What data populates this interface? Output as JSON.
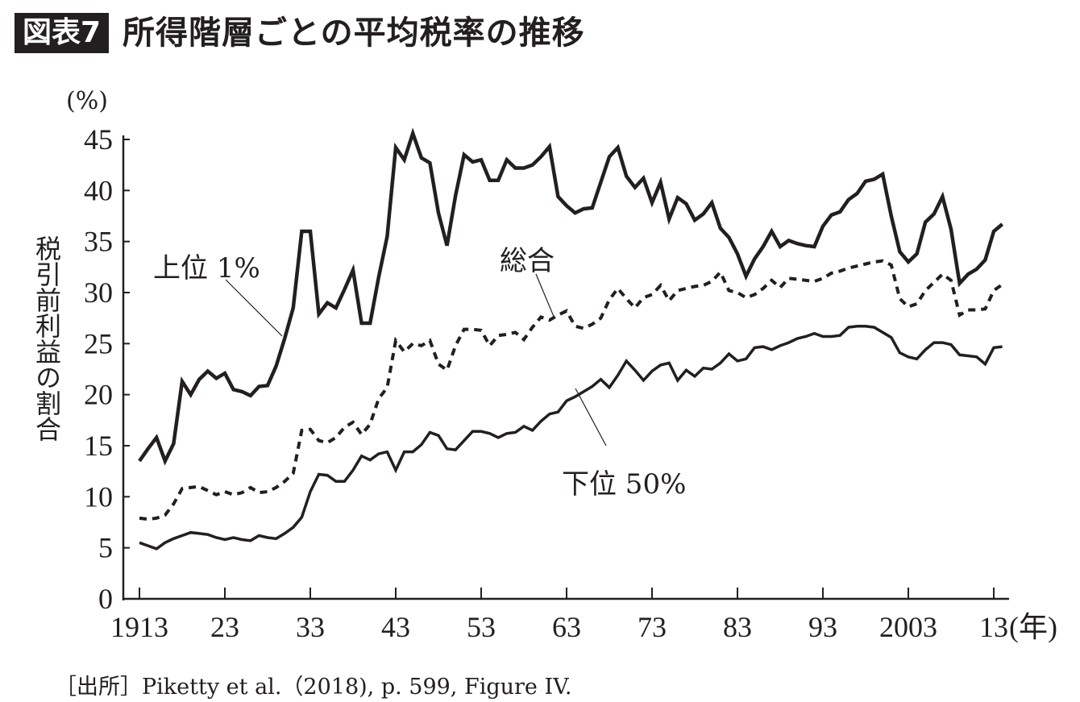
{
  "figure": {
    "badge": "図表7",
    "title": "所得階層ごとの平均税率の推移",
    "source": "［出所］Piketty et al.（2018), p. 599, Figure IV."
  },
  "chart_data": {
    "type": "line",
    "title": "所得階層ごとの平均税率の推移",
    "ylabel": "税引前利益の割合",
    "yunit": "(%)",
    "xunit": "(年)",
    "ylim": [
      0,
      45
    ],
    "xlim": [
      1913,
      2014
    ],
    "yticks": [
      0,
      5,
      10,
      15,
      20,
      25,
      30,
      35,
      40,
      45
    ],
    "xticks": [
      {
        "value": 1913,
        "label": "1913"
      },
      {
        "value": 1923,
        "label": "23"
      },
      {
        "value": 1933,
        "label": "33"
      },
      {
        "value": 1943,
        "label": "43"
      },
      {
        "value": 1953,
        "label": "53"
      },
      {
        "value": 1963,
        "label": "63"
      },
      {
        "value": 1973,
        "label": "73"
      },
      {
        "value": 1983,
        "label": "83"
      },
      {
        "value": 1993,
        "label": "93"
      },
      {
        "value": 2003,
        "label": "2003"
      },
      {
        "value": 2013,
        "label": "13"
      }
    ],
    "grid": false,
    "series": [
      {
        "name": "上位 1%",
        "style": "solid-thick",
        "color": "#231f20",
        "points": [
          [
            1913,
            13.5
          ],
          [
            1914,
            14.7
          ],
          [
            1915,
            15.8
          ],
          [
            1916,
            13.5
          ],
          [
            1917,
            15.2
          ],
          [
            1918,
            21.3
          ],
          [
            1919,
            20
          ],
          [
            1920,
            21.5
          ],
          [
            1921,
            22.3
          ],
          [
            1922,
            21.6
          ],
          [
            1923,
            22.1
          ],
          [
            1924,
            20.5
          ],
          [
            1925,
            20.3
          ],
          [
            1926,
            19.9
          ],
          [
            1927,
            20.8
          ],
          [
            1928,
            20.9
          ],
          [
            1929,
            22.8
          ],
          [
            1930,
            25.5
          ],
          [
            1931,
            28.5
          ],
          [
            1932,
            36
          ],
          [
            1933,
            36
          ],
          [
            1934,
            27.9
          ],
          [
            1935,
            29
          ],
          [
            1936,
            28.5
          ],
          [
            1937,
            30.3
          ],
          [
            1938,
            32.2
          ],
          [
            1939,
            27
          ],
          [
            1940,
            27
          ],
          [
            1941,
            31.5
          ],
          [
            1942,
            35.5
          ],
          [
            1943,
            44.2
          ],
          [
            1944,
            43
          ],
          [
            1945,
            45.6
          ],
          [
            1946,
            43.2
          ],
          [
            1947,
            42.7
          ],
          [
            1948,
            37.8
          ],
          [
            1949,
            34.6
          ],
          [
            1950,
            39.5
          ],
          [
            1951,
            43.5
          ],
          [
            1952,
            42.8
          ],
          [
            1953,
            43
          ],
          [
            1954,
            41
          ],
          [
            1955,
            41
          ],
          [
            1956,
            43
          ],
          [
            1957,
            42.2
          ],
          [
            1958,
            42.2
          ],
          [
            1959,
            42.5
          ],
          [
            1960,
            43.3
          ],
          [
            1961,
            44.3
          ],
          [
            1962,
            39.4
          ],
          [
            1963,
            38.5
          ],
          [
            1964,
            37.8
          ],
          [
            1965,
            38.2
          ],
          [
            1966,
            38.3
          ],
          [
            1967,
            40.8
          ],
          [
            1968,
            43.3
          ],
          [
            1969,
            44.2
          ],
          [
            1970,
            41.4
          ],
          [
            1971,
            40.3
          ],
          [
            1972,
            41.2
          ],
          [
            1973,
            38.8
          ],
          [
            1974,
            40.8
          ],
          [
            1975,
            37.2
          ],
          [
            1976,
            39.3
          ],
          [
            1977,
            38.7
          ],
          [
            1978,
            37.1
          ],
          [
            1979,
            37.7
          ],
          [
            1980,
            38.8
          ],
          [
            1981,
            36.3
          ],
          [
            1982,
            35.4
          ],
          [
            1983,
            33.8
          ],
          [
            1984,
            31.6
          ],
          [
            1985,
            33.3
          ],
          [
            1986,
            34.5
          ],
          [
            1987,
            36
          ],
          [
            1988,
            34.5
          ],
          [
            1989,
            35.1
          ],
          [
            1990,
            34.8
          ],
          [
            1991,
            34.6
          ],
          [
            1992,
            34.5
          ],
          [
            1993,
            36.5
          ],
          [
            1994,
            37.6
          ],
          [
            1995,
            37.9
          ],
          [
            1996,
            39.1
          ],
          [
            1997,
            39.7
          ],
          [
            1998,
            40.9
          ],
          [
            1999,
            41.1
          ],
          [
            2000,
            41.6
          ],
          [
            2001,
            37.5
          ],
          [
            2002,
            34
          ],
          [
            2003,
            33
          ],
          [
            2004,
            33.8
          ],
          [
            2005,
            36.9
          ],
          [
            2006,
            37.7
          ],
          [
            2007,
            39.4
          ],
          [
            2008,
            36.2
          ],
          [
            2009,
            30.9
          ],
          [
            2010,
            31.8
          ],
          [
            2011,
            32.3
          ],
          [
            2012,
            33.2
          ],
          [
            2013,
            36
          ],
          [
            2014,
            36.7
          ]
        ]
      },
      {
        "name": "総合",
        "style": "dashed",
        "color": "#231f20",
        "points": [
          [
            1913,
            7.9
          ],
          [
            1914,
            7.8
          ],
          [
            1915,
            7.9
          ],
          [
            1916,
            8.2
          ],
          [
            1917,
            9.3
          ],
          [
            1918,
            10.8
          ],
          [
            1919,
            10.9
          ],
          [
            1920,
            11
          ],
          [
            1921,
            10.6
          ],
          [
            1922,
            10.2
          ],
          [
            1923,
            10.5
          ],
          [
            1924,
            10.2
          ],
          [
            1925,
            10.4
          ],
          [
            1926,
            10.9
          ],
          [
            1927,
            10.4
          ],
          [
            1928,
            10.5
          ],
          [
            1929,
            10.9
          ],
          [
            1930,
            11.5
          ],
          [
            1931,
            12.3
          ],
          [
            1932,
            16.5
          ],
          [
            1933,
            16.6
          ],
          [
            1934,
            15.5
          ],
          [
            1935,
            15.3
          ],
          [
            1936,
            15.8
          ],
          [
            1937,
            16.8
          ],
          [
            1938,
            17.3
          ],
          [
            1939,
            16.1
          ],
          [
            1940,
            17.1
          ],
          [
            1941,
            19.6
          ],
          [
            1942,
            20.7
          ],
          [
            1943,
            25.3
          ],
          [
            1944,
            24.2
          ],
          [
            1945,
            25
          ],
          [
            1946,
            24.8
          ],
          [
            1947,
            25.3
          ],
          [
            1948,
            23
          ],
          [
            1949,
            22.4
          ],
          [
            1950,
            24.8
          ],
          [
            1951,
            26.4
          ],
          [
            1952,
            26.4
          ],
          [
            1953,
            26.3
          ],
          [
            1954,
            24.8
          ],
          [
            1955,
            25.8
          ],
          [
            1956,
            25.9
          ],
          [
            1957,
            26.1
          ],
          [
            1958,
            25.4
          ],
          [
            1959,
            26.6
          ],
          [
            1960,
            27.6
          ],
          [
            1961,
            27.3
          ],
          [
            1962,
            27.8
          ],
          [
            1963,
            28.2
          ],
          [
            1964,
            26.7
          ],
          [
            1965,
            26.5
          ],
          [
            1966,
            26.9
          ],
          [
            1967,
            27.5
          ],
          [
            1968,
            29.3
          ],
          [
            1969,
            30.4
          ],
          [
            1970,
            29.4
          ],
          [
            1971,
            28.5
          ],
          [
            1972,
            29.5
          ],
          [
            1973,
            29.8
          ],
          [
            1974,
            30.7
          ],
          [
            1975,
            29.2
          ],
          [
            1976,
            30.2
          ],
          [
            1977,
            30.4
          ],
          [
            1978,
            30.6
          ],
          [
            1979,
            30.7
          ],
          [
            1980,
            31.1
          ],
          [
            1981,
            32
          ],
          [
            1982,
            30.2
          ],
          [
            1983,
            30
          ],
          [
            1984,
            29.5
          ],
          [
            1985,
            29.8
          ],
          [
            1986,
            30.4
          ],
          [
            1987,
            31.2
          ],
          [
            1988,
            30.5
          ],
          [
            1989,
            31.4
          ],
          [
            1990,
            31.3
          ],
          [
            1991,
            31.2
          ],
          [
            1992,
            31.1
          ],
          [
            1993,
            31.4
          ],
          [
            1994,
            31.9
          ],
          [
            1995,
            32.1
          ],
          [
            1996,
            32.4
          ],
          [
            1997,
            32.6
          ],
          [
            1998,
            32.8
          ],
          [
            1999,
            33
          ],
          [
            2000,
            33.1
          ],
          [
            2001,
            32.7
          ],
          [
            2002,
            29.4
          ],
          [
            2003,
            28.6
          ],
          [
            2004,
            28.9
          ],
          [
            2005,
            30.2
          ],
          [
            2006,
            31
          ],
          [
            2007,
            31.8
          ],
          [
            2008,
            31.2
          ],
          [
            2009,
            27.8
          ],
          [
            2010,
            28.3
          ],
          [
            2011,
            28.3
          ],
          [
            2012,
            28.4
          ],
          [
            2013,
            30.2
          ],
          [
            2014,
            30.8
          ]
        ]
      },
      {
        "name": "下位 50%",
        "style": "solid",
        "color": "#231f20",
        "points": [
          [
            1913,
            5.5
          ],
          [
            1914,
            5.2
          ],
          [
            1915,
            4.9
          ],
          [
            1916,
            5.5
          ],
          [
            1917,
            5.9
          ],
          [
            1918,
            6.2
          ],
          [
            1919,
            6.5
          ],
          [
            1920,
            6.4
          ],
          [
            1921,
            6.3
          ],
          [
            1922,
            6.0
          ],
          [
            1923,
            5.8
          ],
          [
            1924,
            6.0
          ],
          [
            1925,
            5.8
          ],
          [
            1926,
            5.7
          ],
          [
            1927,
            6.2
          ],
          [
            1928,
            6.0
          ],
          [
            1929,
            5.9
          ],
          [
            1930,
            6.4
          ],
          [
            1931,
            7.0
          ],
          [
            1932,
            8.0
          ],
          [
            1933,
            10.5
          ],
          [
            1934,
            12.2
          ],
          [
            1935,
            12.1
          ],
          [
            1936,
            11.5
          ],
          [
            1937,
            11.5
          ],
          [
            1938,
            12.6
          ],
          [
            1939,
            14.0
          ],
          [
            1940,
            13.6
          ],
          [
            1941,
            14.2
          ],
          [
            1942,
            14.4
          ],
          [
            1943,
            12.6
          ],
          [
            1944,
            14.4
          ],
          [
            1945,
            14.4
          ],
          [
            1946,
            15.1
          ],
          [
            1947,
            16.3
          ],
          [
            1948,
            16.0
          ],
          [
            1949,
            14.7
          ],
          [
            1950,
            14.6
          ],
          [
            1951,
            15.5
          ],
          [
            1952,
            16.4
          ],
          [
            1953,
            16.4
          ],
          [
            1954,
            16.2
          ],
          [
            1955,
            15.8
          ],
          [
            1956,
            16.2
          ],
          [
            1957,
            16.3
          ],
          [
            1958,
            16.9
          ],
          [
            1959,
            16.5
          ],
          [
            1960,
            17.4
          ],
          [
            1961,
            18.1
          ],
          [
            1962,
            18.3
          ],
          [
            1963,
            19.4
          ],
          [
            1964,
            19.8
          ],
          [
            1965,
            20.3
          ],
          [
            1966,
            20.8
          ],
          [
            1967,
            21.5
          ],
          [
            1968,
            20.7
          ],
          [
            1969,
            21.9
          ],
          [
            1970,
            23.3
          ],
          [
            1971,
            22.4
          ],
          [
            1972,
            21.4
          ],
          [
            1973,
            22.3
          ],
          [
            1974,
            22.9
          ],
          [
            1975,
            23.1
          ],
          [
            1976,
            21.4
          ],
          [
            1977,
            22.4
          ],
          [
            1978,
            21.8
          ],
          [
            1979,
            22.6
          ],
          [
            1980,
            22.5
          ],
          [
            1981,
            23.1
          ],
          [
            1982,
            24.0
          ],
          [
            1983,
            23.3
          ],
          [
            1984,
            23.5
          ],
          [
            1985,
            24.6
          ],
          [
            1986,
            24.7
          ],
          [
            1987,
            24.4
          ],
          [
            1988,
            24.8
          ],
          [
            1989,
            25.1
          ],
          [
            1990,
            25.5
          ],
          [
            1991,
            25.7
          ],
          [
            1992,
            26.0
          ],
          [
            1993,
            25.7
          ],
          [
            1994,
            25.7
          ],
          [
            1995,
            25.8
          ],
          [
            1996,
            26.6
          ],
          [
            1997,
            26.7
          ],
          [
            1998,
            26.7
          ],
          [
            1999,
            26.6
          ],
          [
            2000,
            26.1
          ],
          [
            2001,
            25.6
          ],
          [
            2002,
            24.1
          ],
          [
            2003,
            23.7
          ],
          [
            2004,
            23.5
          ],
          [
            2005,
            24.4
          ],
          [
            2006,
            25.1
          ],
          [
            2007,
            25.1
          ],
          [
            2008,
            24.9
          ],
          [
            2009,
            23.9
          ],
          [
            2010,
            23.8
          ],
          [
            2011,
            23.7
          ],
          [
            2012,
            23.0
          ],
          [
            2013,
            24.6
          ],
          [
            2014,
            24.7
          ]
        ]
      }
    ]
  }
}
